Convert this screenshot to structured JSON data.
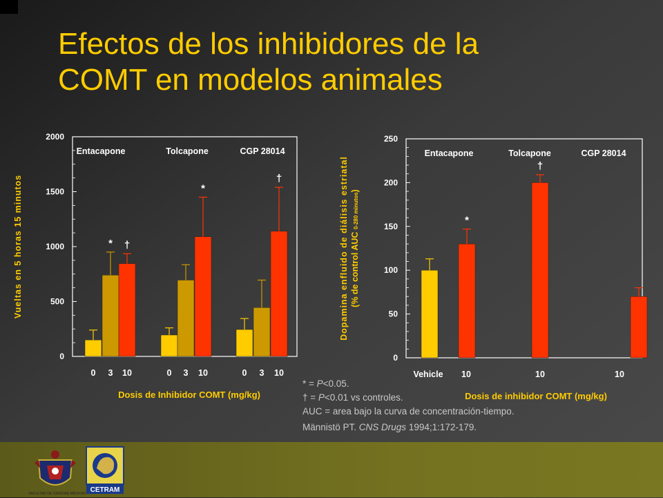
{
  "title": "Efectos de los inhibidores de la\nCOMT en modelos animales",
  "colors": {
    "title": "#ffcc00",
    "yellow": "#ffcc00",
    "gold": "#cc9900",
    "red": "#ff3300",
    "white": "#ffffff"
  },
  "chart_data": [
    {
      "type": "bar",
      "ylabel": "Vueltas en 5 horas 15 minutos",
      "xlabel": "Dosis de  Inhibidor  COMT (mg/kg)",
      "ylim": [
        0,
        2000
      ],
      "yticks": [
        "0",
        "500",
        "1000",
        "1500",
        "2000"
      ],
      "groups": [
        "Entacapone",
        "Tolcapone",
        "CGP 28014"
      ],
      "categories": [
        "0",
        "3",
        "10",
        "0",
        "3",
        "10",
        "0",
        "3",
        "10"
      ],
      "values": [
        150,
        740,
        845,
        195,
        695,
        1090,
        245,
        445,
        1140
      ],
      "errors": [
        90,
        210,
        90,
        65,
        140,
        360,
        100,
        250,
        400
      ],
      "significance": [
        "",
        "*",
        "†",
        "",
        "",
        "*",
        "",
        "",
        "†"
      ],
      "bar_colors": [
        "#ffcc00",
        "#cc9900",
        "#ff3300",
        "#ffcc00",
        "#cc9900",
        "#ff3300",
        "#ffcc00",
        "#cc9900",
        "#ff3300"
      ]
    },
    {
      "type": "bar",
      "ylabel": "Dopamina  enfluido  de diálisis  estriatal",
      "ylabel2": "(% de control AUC",
      "ylabel2_sub": "0-280 minutos",
      "ylabel2_end": ")",
      "xlabel": "Dosis de inhibidor   COMT  (mg/kg)",
      "ylim": [
        0,
        250
      ],
      "yticks": [
        "0",
        "50",
        "100",
        "150",
        "200",
        "250"
      ],
      "groups": [
        "Entacapone",
        "Tolcapone",
        "CGP 28014"
      ],
      "categories": [
        "Vehicle",
        "10",
        "10",
        "10"
      ],
      "values": [
        100,
        130,
        200,
        70
      ],
      "errors": [
        13,
        17,
        9,
        10
      ],
      "significance": [
        "",
        "*",
        "†",
        ""
      ],
      "bar_colors": [
        "#ffcc00",
        "#ff3300",
        "#ff3300",
        "#ff3300"
      ]
    }
  ],
  "notes": {
    "p005_prefix": "* = ",
    "p005_p": "P",
    "p005_rest": "<0.05.",
    "p001_prefix": "† = ",
    "p001_p": "P",
    "p001_rest": "<0.01 vs controles.",
    "auc": "AUC = area bajo la curva de concentración-tiempo.",
    "ref_author": "Männistö PT. ",
    "ref_journal": "CNS Drugs",
    "ref_rest": " 1994;1:172-179."
  },
  "footer": {
    "logo1_caption": "FACULTAD DE CIENCIAS MÉDICAS",
    "logo2_text": "CETRAM",
    "logo2_arc": "CENTRO DE TRASTORNOS DEL MOVIMIENTO"
  }
}
